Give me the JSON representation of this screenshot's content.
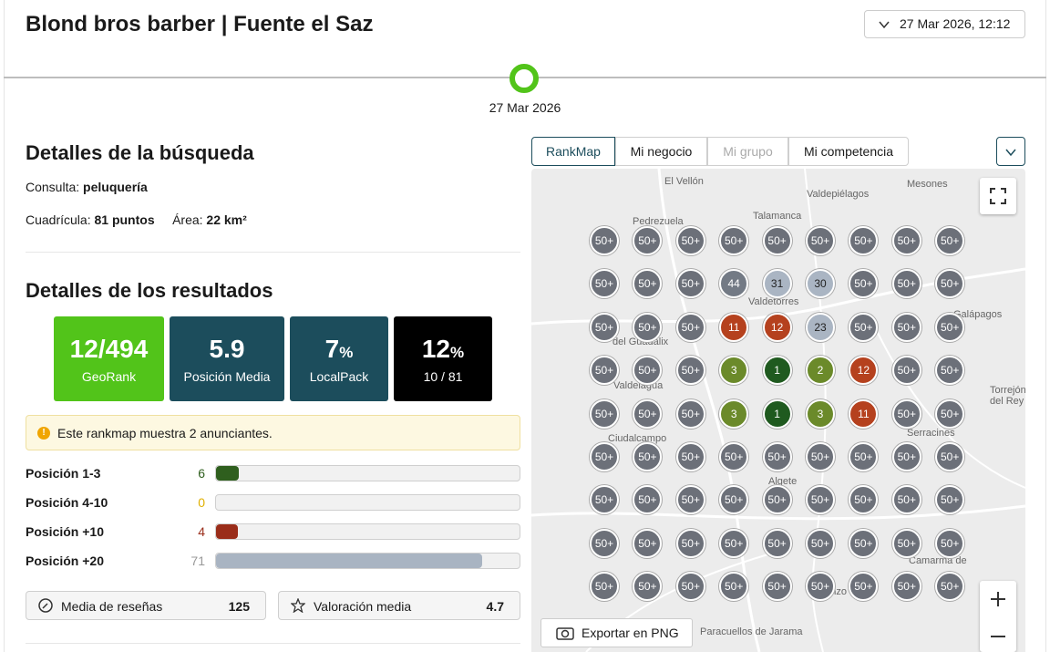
{
  "header": {
    "title": "Blond bros barber | Fuente el Saz",
    "date": "27 Mar 2026, 12:12"
  },
  "timeline": {
    "date": "27 Mar 2026"
  },
  "search": {
    "title": "Detalles de la búsqueda",
    "query_label": "Consulta:",
    "query": "peluquería",
    "grid_label": "Cuadrícula:",
    "grid": "81 puntos",
    "area_label": "Área:",
    "area": "22 km²"
  },
  "results": {
    "title": "Detalles de los resultados",
    "cards": [
      {
        "value": "12/494",
        "label": "GeoRank"
      },
      {
        "value": "5.9",
        "label": "Posición Media"
      },
      {
        "value": "7",
        "unit": "%",
        "label": "LocalPack"
      },
      {
        "value": "12",
        "unit": "%",
        "label": "10 / 81"
      }
    ],
    "notice": "Este rankmap muestra 2 anunciantes.",
    "positions": [
      {
        "label": "Posición 1-3",
        "count": 6
      },
      {
        "label": "Posición 4-10",
        "count": 0
      },
      {
        "label": "Posición +10",
        "count": 4
      },
      {
        "label": "Posición +20",
        "count": 71
      }
    ],
    "stats": [
      {
        "label": "Media de reseñas",
        "value": "125"
      },
      {
        "label": "Valoración media",
        "value": "4.7"
      }
    ]
  },
  "tabs": [
    "RankMap",
    "Mi negocio",
    "Mi grupo",
    "Mi competencia"
  ],
  "map": {
    "places": [
      "El Vellón",
      "Valdepiélagos",
      "Mesones",
      "Pedrezuela",
      "Talamanca",
      "Valdetorres",
      "Galápagos",
      "del Guadalix",
      "Valdelagua",
      "Torrejón del Rey",
      "Ciudalcampo",
      "Serracines",
      "Algete",
      "Daganzo",
      "Camarma de",
      "Paracuellos de Jarama"
    ],
    "grid": [
      [
        "50+",
        "50+",
        "50+",
        "50+",
        "50+",
        "50+",
        "50+",
        "50+",
        "50+"
      ],
      [
        "50+",
        "50+",
        "50+",
        "44",
        "31",
        "30",
        "50+",
        "50+",
        "50+"
      ],
      [
        "50+",
        "50+",
        "50+",
        "11",
        "12",
        "23",
        "50+",
        "50+",
        "50+"
      ],
      [
        "50+",
        "50+",
        "50+",
        "3",
        "1",
        "2",
        "12",
        "50+",
        "50+"
      ],
      [
        "50+",
        "50+",
        "50+",
        "3",
        "1",
        "3",
        "11",
        "50+",
        "50+"
      ],
      [
        "50+",
        "50+",
        "50+",
        "50+",
        "50+",
        "50+",
        "50+",
        "50+",
        "50+"
      ],
      [
        "50+",
        "50+",
        "50+",
        "50+",
        "50+",
        "50+",
        "50+",
        "50+",
        "50+"
      ],
      [
        "50+",
        "50+",
        "50+",
        "50+",
        "50+",
        "50+",
        "50+",
        "50+",
        "50+"
      ],
      [
        "50+",
        "50+",
        "50+",
        "50+",
        "50+",
        "50+",
        "50+",
        "50+",
        "50+"
      ]
    ],
    "export": "Exportar en PNG"
  }
}
